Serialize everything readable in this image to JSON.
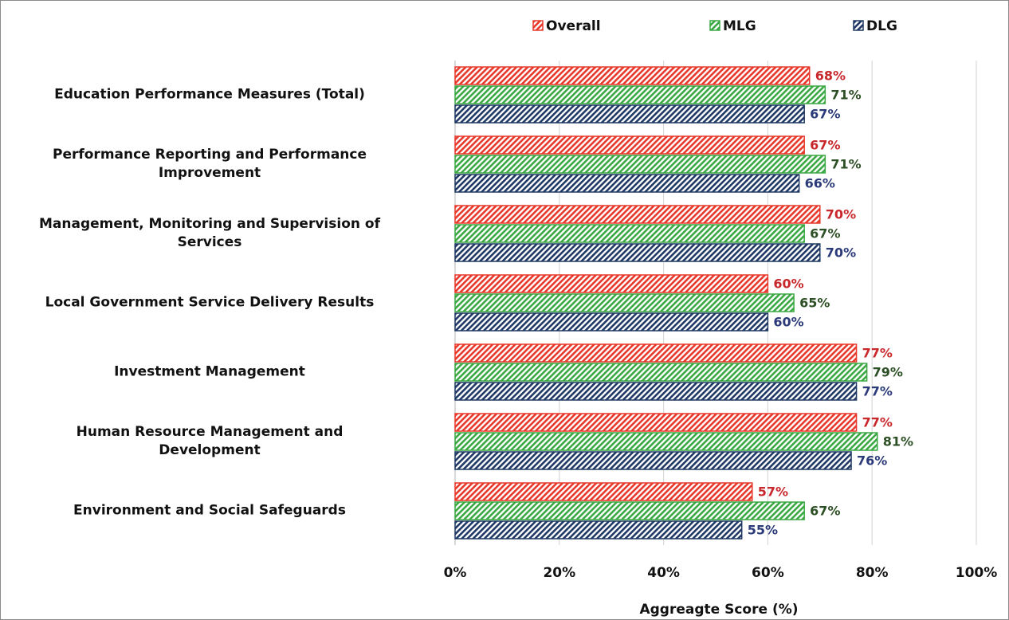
{
  "chart_data": {
    "type": "bar",
    "orientation": "horizontal",
    "categories": [
      "Education Performance Measures (Total)",
      "Performance Reporting and Performance\nImprovement",
      "Management, Monitoring and Supervision of\nServices",
      "Local Government Service Delivery Results",
      "Investment Management",
      "Human Resource Management and\nDevelopment",
      "Environment and Social Safeguards"
    ],
    "series": [
      {
        "name": "Overall",
        "color": "#e8382b",
        "label_color": "#c8282b",
        "values": [
          68,
          67,
          70,
          60,
          77,
          77,
          57
        ],
        "value_labels": [
          "68%",
          "67%",
          "70%",
          "60%",
          "77%",
          "77%",
          "57%"
        ]
      },
      {
        "name": "MLG",
        "color": "#3aa843",
        "label_color": "#2d4f25",
        "values": [
          71,
          71,
          67,
          65,
          79,
          81,
          67
        ],
        "value_labels": [
          "71%",
          "71%",
          "67%",
          "65%",
          "79%",
          "81%",
          "67%"
        ]
      },
      {
        "name": "DLG",
        "color": "#1f3864",
        "label_color": "#2b3a78",
        "values": [
          67,
          66,
          70,
          60,
          77,
          76,
          55
        ],
        "value_labels": [
          "67%",
          "66%",
          "70%",
          "60%",
          "77%",
          "76%",
          "55%"
        ]
      }
    ],
    "xlim": [
      0,
      100
    ],
    "xticks": [
      {
        "value": 0,
        "label": "0%"
      },
      {
        "value": 20,
        "label": "20%"
      },
      {
        "value": 40,
        "label": "40%"
      },
      {
        "value": 60,
        "label": "60%"
      },
      {
        "value": 80,
        "label": "80%"
      },
      {
        "value": 100,
        "label": "100%"
      }
    ],
    "xlabel": "Aggreagte Score (%)",
    "grid": true,
    "legend": "top"
  }
}
